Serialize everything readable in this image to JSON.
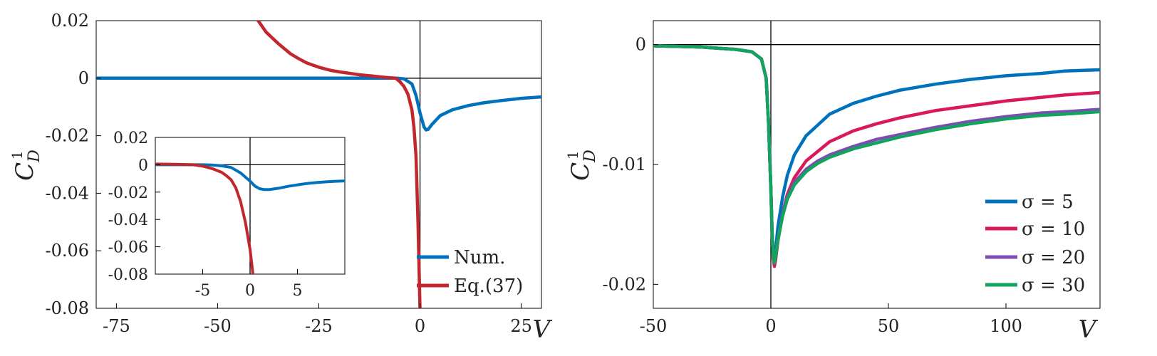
{
  "colors": {
    "num": "#0072BD",
    "eq37": "#C1272D",
    "s5": "#0072BD",
    "s10": "#D9195A",
    "s20": "#7E4DB4",
    "s30": "#12A35C",
    "axis": "#000000"
  },
  "chart_data": [
    {
      "id": "left-main",
      "type": "line",
      "xlabel": "V",
      "ylabel": "C_D^1",
      "xlim": [
        -80,
        30
      ],
      "ylim": [
        -0.08,
        0.02
      ],
      "xticks": [
        -75,
        -50,
        -25,
        0,
        25
      ],
      "xtick_labels": [
        "-75",
        "-50",
        "-25",
        "0",
        "25"
      ],
      "yticks": [
        0.02,
        0,
        -0.02,
        -0.04,
        -0.06,
        -0.08
      ],
      "ytick_labels": [
        "0.02",
        "0",
        "-0.02",
        "-0.04",
        "-0.06",
        "-0.08"
      ],
      "zero_lines": true,
      "legend_position": "bottom-right",
      "series": [
        {
          "name": "Num.",
          "color_key": "num",
          "x": [
            -80,
            -60,
            -40,
            -25,
            -15,
            -10,
            -6,
            -4,
            -2,
            -1,
            0,
            1,
            1.5,
            2,
            3,
            5,
            8,
            12,
            16,
            20,
            25,
            30
          ],
          "y": [
            0,
            0,
            0,
            0,
            0,
            0,
            0,
            -0.0002,
            -0.002,
            -0.006,
            -0.012,
            -0.017,
            -0.018,
            -0.0178,
            -0.016,
            -0.013,
            -0.011,
            -0.0095,
            -0.0085,
            -0.0078,
            -0.007,
            -0.0065
          ]
        },
        {
          "name": "Eq.(37)",
          "color_key": "eq37",
          "x": [
            -42,
            -40,
            -38,
            -35,
            -32,
            -30,
            -28,
            -25,
            -22,
            -20,
            -17,
            -15,
            -12,
            -10,
            -8,
            -6,
            -5,
            -4,
            -3,
            -2,
            -1.5,
            -1,
            -0.5,
            0
          ],
          "y": [
            0.026,
            0.02,
            0.016,
            0.012,
            0.0085,
            0.0068,
            0.0053,
            0.0038,
            0.0027,
            0.0022,
            0.0016,
            0.0012,
            0.0008,
            0.0005,
            0.0002,
            0,
            -0.0012,
            -0.0028,
            -0.0055,
            -0.011,
            -0.017,
            -0.027,
            -0.05,
            -0.08
          ]
        }
      ]
    },
    {
      "id": "left-inset",
      "type": "line",
      "xlim": [
        -10,
        10
      ],
      "ylim": [
        -0.08,
        0.02
      ],
      "xticks": [
        -5,
        0,
        5
      ],
      "xtick_labels": [
        "-5",
        "0",
        "5"
      ],
      "yticks": [
        0.02,
        0,
        -0.02,
        -0.04,
        -0.06,
        -0.08
      ],
      "ytick_labels": [
        "0.02",
        "0",
        "-0.02",
        "-0.04",
        "-0.06",
        "-0.08"
      ],
      "zero_lines": true,
      "series": [
        {
          "color_key": "num",
          "x": [
            -10,
            -8,
            -6,
            -5,
            -4,
            -3,
            -2,
            -1,
            0,
            0.5,
            1,
            1.5,
            2,
            3,
            4,
            5,
            6,
            7,
            8,
            9,
            10
          ],
          "y": [
            0,
            0,
            0,
            0,
            -0.0002,
            -0.0008,
            -0.002,
            -0.006,
            -0.012,
            -0.0155,
            -0.0175,
            -0.0182,
            -0.0182,
            -0.0172,
            -0.0158,
            -0.0147,
            -0.0137,
            -0.013,
            -0.0125,
            -0.0121,
            -0.0118
          ]
        },
        {
          "color_key": "eq37",
          "x": [
            -10,
            -8,
            -6,
            -5,
            -4,
            -3,
            -2.5,
            -2,
            -1.5,
            -1,
            -0.5,
            0,
            0.3
          ],
          "y": [
            0.0005,
            0.0003,
            0,
            -0.001,
            -0.0028,
            -0.0055,
            -0.008,
            -0.011,
            -0.017,
            -0.027,
            -0.042,
            -0.062,
            -0.08
          ]
        }
      ]
    },
    {
      "id": "right",
      "type": "line",
      "xlabel": "V",
      "ylabel": "C_D^1",
      "xlim": [
        -50,
        140
      ],
      "ylim": [
        -0.022,
        0.002
      ],
      "xticks": [
        -50,
        0,
        50,
        100
      ],
      "xtick_labels": [
        "-50",
        "0",
        "50",
        "100"
      ],
      "yticks": [
        0,
        -0.01,
        -0.02
      ],
      "ytick_labels": [
        "0",
        "-0.01",
        "-0.02"
      ],
      "zero_lines": true,
      "legend_position": "bottom-right",
      "series": [
        {
          "name": "σ = 5",
          "color_key": "s5",
          "x": [
            -50,
            -30,
            -15,
            -8,
            -4,
            -2,
            -1,
            0,
            0.5,
            1,
            1.5,
            2,
            3,
            5,
            7,
            10,
            15,
            20,
            25,
            35,
            45,
            55,
            70,
            85,
            100,
            115,
            125,
            140
          ],
          "y": [
            -0.0001,
            -0.0002,
            -0.0004,
            -0.0006,
            -0.0012,
            -0.0028,
            -0.0065,
            -0.012,
            -0.0155,
            -0.0174,
            -0.018,
            -0.0172,
            -0.0152,
            -0.0127,
            -0.0109,
            -0.0092,
            -0.0076,
            -0.0067,
            -0.0058,
            -0.0049,
            -0.0043,
            -0.0038,
            -0.0033,
            -0.0029,
            -0.0026,
            -0.0024,
            -0.0022,
            -0.0021
          ]
        },
        {
          "name": "σ = 10",
          "color_key": "s10",
          "x": [
            -50,
            -30,
            -15,
            -8,
            -4,
            -2,
            -1,
            0,
            0.5,
            1,
            1.5,
            2,
            3,
            5,
            7,
            10,
            15,
            20,
            25,
            35,
            45,
            55,
            70,
            85,
            100,
            115,
            125,
            140
          ],
          "y": [
            -0.0001,
            -0.0002,
            -0.0004,
            -0.0006,
            -0.0012,
            -0.0028,
            -0.0065,
            -0.012,
            -0.0157,
            -0.0178,
            -0.0185,
            -0.018,
            -0.0164,
            -0.0141,
            -0.0125,
            -0.0111,
            -0.0097,
            -0.0089,
            -0.0081,
            -0.0072,
            -0.0066,
            -0.0061,
            -0.0055,
            -0.0051,
            -0.0047,
            -0.0044,
            -0.0042,
            -0.004
          ]
        },
        {
          "name": "σ = 20",
          "color_key": "s20",
          "x": [
            -50,
            -30,
            -15,
            -8,
            -4,
            -2,
            -1,
            0,
            0.5,
            1,
            1.5,
            2,
            3,
            5,
            7,
            10,
            15,
            20,
            25,
            35,
            45,
            55,
            70,
            85,
            100,
            115,
            125,
            140
          ],
          "y": [
            -0.0001,
            -0.0002,
            -0.0004,
            -0.0006,
            -0.0012,
            -0.0028,
            -0.0065,
            -0.012,
            -0.0156,
            -0.0176,
            -0.0182,
            -0.0177,
            -0.0162,
            -0.0141,
            -0.0127,
            -0.0115,
            -0.0104,
            -0.0097,
            -0.0092,
            -0.0085,
            -0.0079,
            -0.0075,
            -0.0069,
            -0.0064,
            -0.006,
            -0.0057,
            -0.0056,
            -0.0054
          ]
        },
        {
          "name": "σ = 30",
          "color_key": "s30",
          "x": [
            -50,
            -30,
            -15,
            -8,
            -4,
            -2,
            -1,
            0,
            0.5,
            1,
            1.5,
            2,
            3,
            5,
            7,
            10,
            15,
            20,
            25,
            35,
            45,
            55,
            70,
            85,
            100,
            115,
            125,
            140
          ],
          "y": [
            -0.0001,
            -0.0002,
            -0.0004,
            -0.0006,
            -0.0012,
            -0.0028,
            -0.0065,
            -0.012,
            -0.0156,
            -0.0176,
            -0.0182,
            -0.0177,
            -0.0163,
            -0.0143,
            -0.0129,
            -0.0117,
            -0.0106,
            -0.0099,
            -0.0094,
            -0.0087,
            -0.0082,
            -0.0077,
            -0.0071,
            -0.0066,
            -0.0062,
            -0.0059,
            -0.0058,
            -0.0056
          ]
        }
      ]
    }
  ]
}
